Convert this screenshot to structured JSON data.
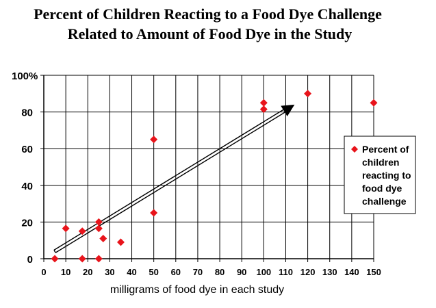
{
  "chart_data": {
    "type": "scatter",
    "title_lines": [
      "Percent of Children Reacting to a Food Dye Challenge",
      "Related to Amount of Food Dye in the Study"
    ],
    "xlabel": "milligrams of food dye in each study",
    "ylabel": "",
    "xlim": [
      0,
      150
    ],
    "ylim": [
      0,
      100
    ],
    "x_ticks": [
      0,
      10,
      20,
      30,
      40,
      50,
      60,
      70,
      80,
      90,
      100,
      110,
      120,
      130,
      140,
      150
    ],
    "y_ticks": [
      {
        "value": 0,
        "label": "0"
      },
      {
        "value": 20,
        "label": "20"
      },
      {
        "value": 40,
        "label": "40"
      },
      {
        "value": 60,
        "label": "60"
      },
      {
        "value": 80,
        "label": "80"
      },
      {
        "value": 100,
        "label": "100%"
      }
    ],
    "grid": true,
    "legend_position": "right",
    "series": [
      {
        "name": "Percent of children reacting to food dye challenge",
        "legend_lines": [
          "Percent of",
          "children",
          "reacting to",
          "food dye",
          "challenge"
        ],
        "color": "#e8141b",
        "marker": "diamond",
        "points": [
          {
            "x": 5,
            "y": 0
          },
          {
            "x": 10,
            "y": 16.5
          },
          {
            "x": 17.5,
            "y": 15
          },
          {
            "x": 17.5,
            "y": 0
          },
          {
            "x": 25,
            "y": 20
          },
          {
            "x": 25,
            "y": 16.5
          },
          {
            "x": 25,
            "y": 0
          },
          {
            "x": 27,
            "y": 11
          },
          {
            "x": 35,
            "y": 9
          },
          {
            "x": 50,
            "y": 65
          },
          {
            "x": 50,
            "y": 25
          },
          {
            "x": 100,
            "y": 85
          },
          {
            "x": 100,
            "y": 81.5
          },
          {
            "x": 120,
            "y": 90
          },
          {
            "x": 150,
            "y": 85
          }
        ]
      }
    ],
    "trend_arrow": {
      "from": {
        "x": 5,
        "y": 4
      },
      "to": {
        "x": 114,
        "y": 84
      },
      "color": "#000000"
    }
  }
}
